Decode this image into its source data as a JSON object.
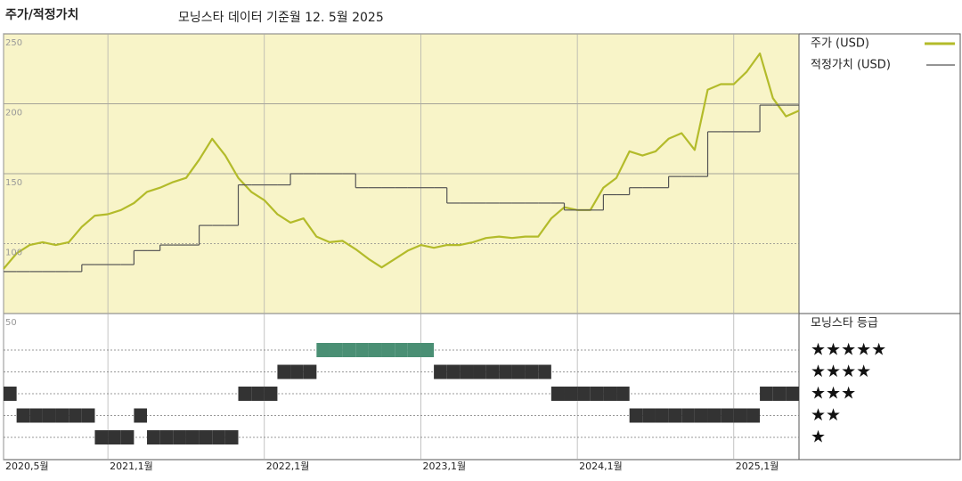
{
  "chart_data": {
    "type": "line",
    "title": "주가/적정가치",
    "subtitle": "모닝스타 데이터 기준월 12. 5월 2025",
    "x": [
      "2020-05",
      "2020-06",
      "2020-07",
      "2020-08",
      "2020-09",
      "2020-10",
      "2020-11",
      "2020-12",
      "2021-01",
      "2021-02",
      "2021-03",
      "2021-04",
      "2021-05",
      "2021-06",
      "2021-07",
      "2021-08",
      "2021-09",
      "2021-10",
      "2021-11",
      "2021-12",
      "2022-01",
      "2022-02",
      "2022-03",
      "2022-04",
      "2022-05",
      "2022-06",
      "2022-07",
      "2022-08",
      "2022-09",
      "2022-10",
      "2022-11",
      "2022-12",
      "2023-01",
      "2023-02",
      "2023-03",
      "2023-04",
      "2023-05",
      "2023-06",
      "2023-07",
      "2023-08",
      "2023-09",
      "2023-10",
      "2023-11",
      "2023-12",
      "2024-01",
      "2024-02",
      "2024-03",
      "2024-04",
      "2024-05",
      "2024-06",
      "2024-07",
      "2024-08",
      "2024-09",
      "2024-10",
      "2024-11",
      "2024-12",
      "2025-01",
      "2025-02",
      "2025-03",
      "2025-04",
      "2025-05",
      "2025-06"
    ],
    "series": [
      {
        "name": "주가 (USD)",
        "color": "#b3bb2a",
        "values": [
          82,
          93,
          99,
          101,
          99,
          101,
          112,
          120,
          121,
          124,
          129,
          137,
          140,
          144,
          147,
          160,
          175,
          163,
          147,
          137,
          131,
          121,
          115,
          118,
          105,
          101,
          102,
          96,
          89,
          83,
          89,
          95,
          99,
          97,
          99,
          99,
          101,
          104,
          105,
          104,
          105,
          105,
          118,
          126,
          124,
          124,
          140,
          147,
          166,
          163,
          166,
          175,
          179,
          167,
          210,
          214,
          214,
          223,
          236,
          204,
          191,
          195
        ]
      },
      {
        "name": "적정가치 (USD)",
        "color": "#555555",
        "step": true,
        "values": [
          80,
          80,
          80,
          80,
          80,
          80,
          85,
          85,
          85,
          85,
          95,
          95,
          99,
          99,
          99,
          113,
          113,
          113,
          142,
          142,
          142,
          142,
          150,
          150,
          150,
          150,
          150,
          140,
          140,
          140,
          140,
          140,
          140,
          140,
          129,
          129,
          129,
          129,
          129,
          129,
          129,
          129,
          129,
          124,
          124,
          124,
          135,
          135,
          140,
          140,
          140,
          148,
          148,
          148,
          180,
          180,
          180,
          180,
          199,
          199,
          199,
          199
        ]
      }
    ],
    "xlim": [
      "2020-05",
      "2025-06"
    ],
    "xticks": [
      {
        "value": "2020-05",
        "label": "2020,5월"
      },
      {
        "value": "2021-01",
        "label": "2021,1월"
      },
      {
        "value": "2022-01",
        "label": "2022,1월"
      },
      {
        "value": "2023-01",
        "label": "2023,1월"
      },
      {
        "value": "2024-01",
        "label": "2024,1월"
      },
      {
        "value": "2025-01",
        "label": "2025,1월"
      }
    ],
    "ylim": [
      50,
      250
    ],
    "yticks": [
      50,
      100,
      150,
      200,
      250
    ],
    "grid": true,
    "rating": {
      "name": "모닝스타 등급",
      "color": "#333333",
      "top_color": "#4a8f74",
      "levels": [
        {
          "value": 5,
          "label": "★★★★★"
        },
        {
          "value": 4,
          "label": "★★★★"
        },
        {
          "value": 3,
          "label": "★★★"
        },
        {
          "value": 2,
          "label": "★★"
        },
        {
          "value": 1,
          "label": "★"
        }
      ],
      "values": [
        3,
        2,
        2,
        2,
        2,
        2,
        2,
        1,
        1,
        1,
        2,
        1,
        1,
        1,
        1,
        1,
        1,
        1,
        3,
        3,
        3,
        4,
        4,
        4,
        5,
        5,
        5,
        5,
        5,
        5,
        5,
        5,
        5,
        4,
        4,
        4,
        4,
        4,
        4,
        4,
        4,
        4,
        3,
        3,
        3,
        3,
        3,
        3,
        2,
        2,
        2,
        2,
        2,
        2,
        2,
        2,
        2,
        2,
        3,
        3,
        3,
        3
      ]
    }
  }
}
